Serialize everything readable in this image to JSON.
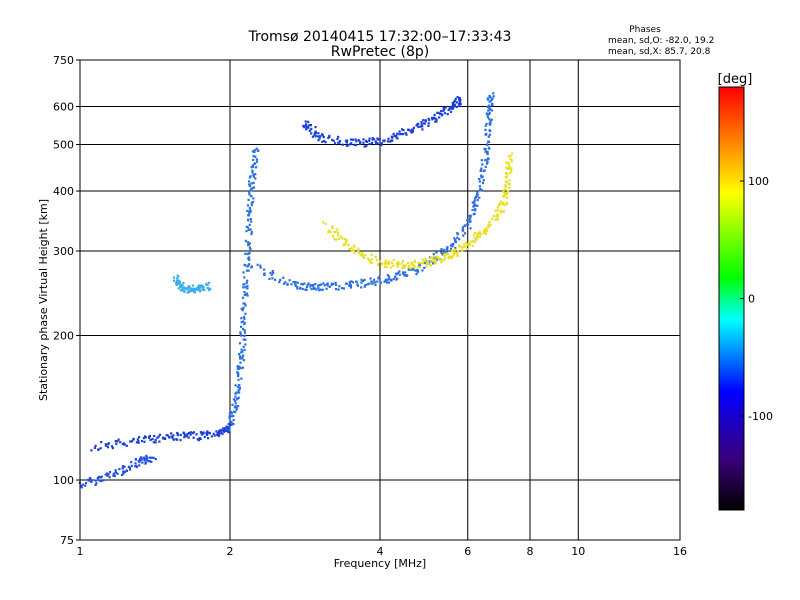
{
  "chart_data": {
    "type": "scatter",
    "title": "Tromsø 20140415 17:32:00–17:33:43",
    "subtitle": "RwPretec (8p)",
    "xlabel": "Frequency [MHz]",
    "ylabel": "Stationary phase Virtual Height [km]",
    "xscale": "log",
    "yscale": "log",
    "xlim": [
      1,
      16
    ],
    "ylim": [
      75,
      750
    ],
    "xticks": [
      1,
      2,
      4,
      6,
      8,
      10,
      16
    ],
    "yticks": [
      75,
      100,
      200,
      300,
      400,
      500,
      600,
      750
    ],
    "grid": true,
    "phases_title": "Phases",
    "phases_o": "mean, sd,O: -82.0, 19.2",
    "phases_x": "mean, sd,X:  85.7, 20.8",
    "colorbar": {
      "label": "[deg]",
      "ticks": [
        100,
        0,
        -100
      ],
      "range": [
        -180,
        180
      ],
      "colormap": [
        "#000000",
        "#3a007a",
        "#0000ff",
        "#00ffff",
        "#00ff00",
        "#ffff00",
        "#ff0000"
      ]
    },
    "series": [
      {
        "color": "#2050e0",
        "trace": [
          [
            1.0,
            98
          ],
          [
            1.15,
            103
          ],
          [
            1.3,
            109
          ],
          [
            1.4,
            112
          ]
        ]
      },
      {
        "color": "#1a3fd8",
        "trace": [
          [
            1.05,
            118
          ],
          [
            1.3,
            121
          ],
          [
            1.5,
            124
          ],
          [
            1.7,
            124
          ],
          [
            1.9,
            126
          ],
          [
            2.0,
            130
          ]
        ]
      },
      {
        "color": "#2a70e0",
        "trace": [
          [
            2.0,
            130
          ],
          [
            2.05,
            150
          ],
          [
            2.1,
            180
          ],
          [
            2.12,
            220
          ],
          [
            2.15,
            280
          ],
          [
            2.18,
            350
          ],
          [
            2.2,
            420
          ],
          [
            2.25,
            500
          ]
        ]
      },
      {
        "color": "#2a6fe0",
        "trace": [
          [
            2.2,
            280
          ],
          [
            2.7,
            255
          ],
          [
            3.0,
            253
          ],
          [
            3.5,
            256
          ],
          [
            4.0,
            262
          ],
          [
            4.5,
            270
          ],
          [
            5.0,
            285
          ],
          [
            5.5,
            305
          ],
          [
            6.0,
            345
          ],
          [
            6.3,
            400
          ],
          [
            6.5,
            480
          ],
          [
            6.6,
            580
          ],
          [
            6.65,
            640
          ]
        ]
      },
      {
        "color": "#1a3fd8",
        "trace": [
          [
            2.8,
            562
          ],
          [
            3.0,
            520
          ],
          [
            3.5,
            505
          ],
          [
            4.0,
            510
          ],
          [
            4.5,
            532
          ],
          [
            5.0,
            560
          ],
          [
            5.5,
            600
          ],
          [
            5.8,
            625
          ]
        ]
      },
      {
        "color": "#e8e020",
        "trace": [
          [
            3.1,
            340
          ],
          [
            3.5,
            305
          ],
          [
            4.0,
            285
          ],
          [
            4.5,
            282
          ],
          [
            5.0,
            286
          ],
          [
            5.5,
            295
          ],
          [
            6.0,
            312
          ],
          [
            6.5,
            335
          ],
          [
            7.0,
            370
          ],
          [
            7.2,
            420
          ],
          [
            7.25,
            480
          ]
        ]
      },
      {
        "color": "#3ab0e8",
        "trace": [
          [
            1.55,
            265
          ],
          [
            1.6,
            250
          ],
          [
            1.7,
            252
          ],
          [
            1.8,
            255
          ]
        ]
      }
    ]
  }
}
